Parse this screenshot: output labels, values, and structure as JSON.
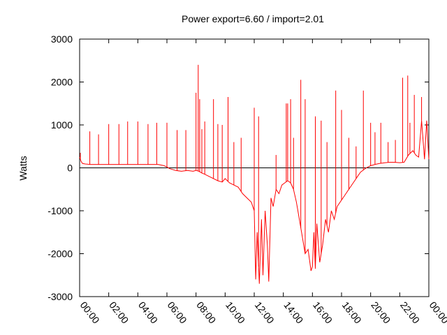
{
  "chart_data": {
    "type": "line",
    "title": "Power export=6.60 / import=2.01",
    "xlabel": "",
    "ylabel": "Watts",
    "xlim": [
      0,
      24
    ],
    "ylim": [
      -3000,
      3000
    ],
    "x_ticks": [
      "00:00",
      "02:00",
      "04:00",
      "06:00",
      "08:00",
      "10:00",
      "12:00",
      "14:00",
      "16:00",
      "18:00",
      "20:00",
      "22:00",
      "00:00"
    ],
    "y_ticks": [
      "3000",
      "2000",
      "1000",
      "0",
      "-1000",
      "-2000",
      "-3000"
    ],
    "zero_line": true,
    "series_color": "#ff0000",
    "series": [
      {
        "x": [
          0,
          0.1,
          0.2,
          0.4,
          0.7,
          1.0,
          1.3,
          1.6,
          2.0,
          2.4,
          2.8,
          3.2,
          3.6,
          4.0,
          4.5,
          5.0,
          5.4,
          5.8,
          6.0,
          6.2,
          6.6,
          7.0,
          7.4,
          7.8,
          8.0,
          8.2,
          8.4,
          8.6,
          8.9,
          9.2,
          9.5,
          9.8,
          10.0,
          10.3,
          10.6,
          10.9,
          11.2,
          11.5,
          11.8,
          12.0,
          12.1,
          12.2,
          12.35,
          12.5,
          12.6,
          12.75,
          12.9,
          13.0,
          13.15,
          13.3,
          13.5,
          13.7,
          13.9,
          14.1,
          14.3,
          14.5,
          14.7,
          14.9,
          15.1,
          15.3,
          15.5,
          15.7,
          15.9,
          16.0,
          16.1,
          16.2,
          16.3,
          16.5,
          16.7,
          16.9,
          17.1,
          17.3,
          17.5,
          17.7,
          17.9,
          18.1,
          18.3,
          18.5,
          18.7,
          18.9,
          19.1,
          19.3,
          19.5,
          19.7,
          20.0,
          20.3,
          20.6,
          21.0,
          21.3,
          21.6,
          22.0,
          22.3,
          22.6,
          22.9,
          23.1,
          23.3,
          23.5,
          23.7,
          23.85,
          24.0
        ],
        "y": [
          250,
          150,
          100,
          90,
          80,
          80,
          80,
          80,
          80,
          80,
          80,
          80,
          80,
          80,
          80,
          80,
          80,
          50,
          20,
          -20,
          -60,
          -80,
          -60,
          -80,
          -60,
          -80,
          -120,
          -150,
          -200,
          -250,
          -300,
          -330,
          -250,
          -350,
          -400,
          -450,
          -600,
          -700,
          -800,
          -1000,
          -2600,
          -1500,
          -2700,
          -1200,
          -2500,
          -1000,
          -1800,
          -2650,
          -700,
          -900,
          -500,
          -600,
          -400,
          -350,
          -300,
          -350,
          -500,
          -800,
          -1200,
          -1600,
          -2000,
          -1900,
          -2400,
          -2300,
          -1500,
          -2350,
          -1300,
          -2200,
          -1800,
          -1200,
          -1500,
          -1000,
          -1200,
          -900,
          -800,
          -700,
          -600,
          -500,
          -400,
          -300,
          -200,
          -100,
          -50,
          0,
          50,
          80,
          100,
          120,
          130,
          130,
          120,
          130,
          300,
          400,
          300,
          250,
          1100,
          200,
          1100,
          200
        ]
      },
      {
        "name": "",
        "spikes_x": [
          0.05,
          0.7,
          1.3,
          2.0,
          2.7,
          3.3,
          4.0,
          4.7,
          5.3,
          6.0,
          6.7,
          7.3,
          8.0,
          8.15,
          8.25,
          8.4,
          8.6,
          9.2,
          9.5,
          9.8,
          10.2,
          10.6,
          11.1,
          12.0,
          12.3,
          13.5,
          14.2,
          14.3,
          14.5,
          14.7,
          15.2,
          15.5,
          16.2,
          16.6,
          17.0,
          17.6,
          18.0,
          18.5,
          19.0,
          19.5,
          20.0,
          20.3,
          20.7,
          21.2,
          21.7,
          22.2,
          22.55,
          22.7,
          23.0,
          23.5
        ],
        "spikes_y": [
          350,
          850,
          780,
          1020,
          1020,
          1080,
          1080,
          1020,
          1050,
          1050,
          880,
          880,
          1750,
          2400,
          1600,
          900,
          1080,
          1600,
          1020,
          1000,
          1650,
          600,
          700,
          1400,
          1200,
          300,
          1500,
          1500,
          1600,
          700,
          2050,
          1600,
          1200,
          1100,
          600,
          1800,
          1350,
          700,
          500,
          1800,
          1050,
          830,
          1050,
          600,
          650,
          2100,
          2150,
          1050,
          1700,
          1650
        ]
      }
    ]
  }
}
